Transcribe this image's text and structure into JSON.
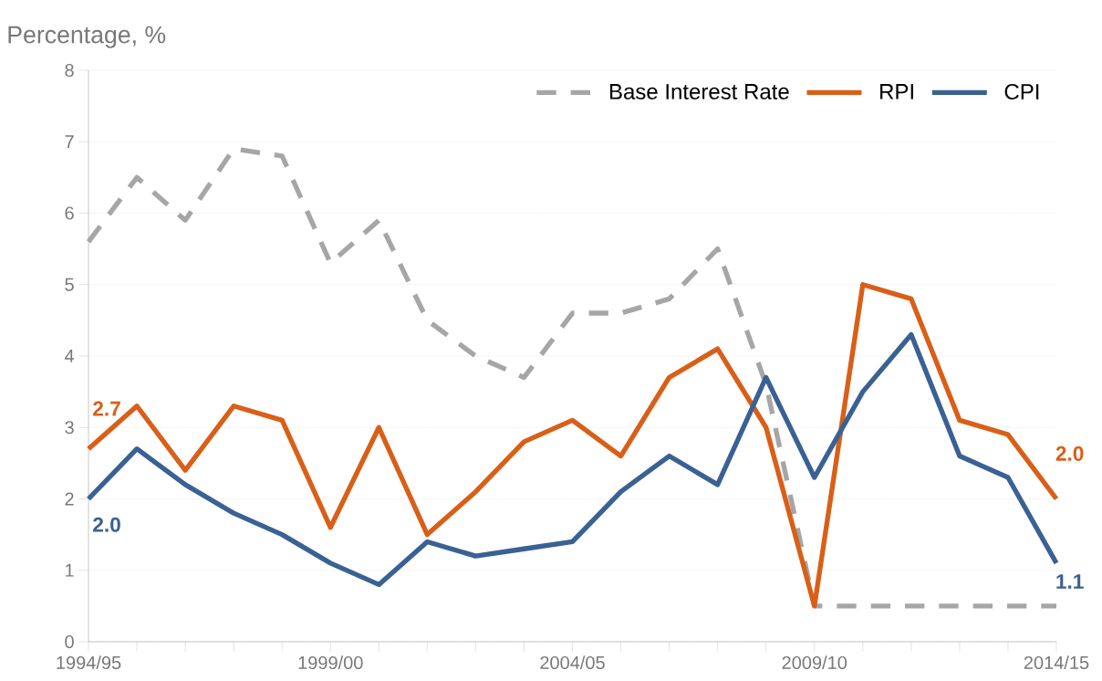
{
  "chart_data": {
    "type": "line",
    "ylabel": "Percentage, %",
    "categories": [
      "1994/95",
      null,
      null,
      null,
      null,
      "1999/00",
      null,
      null,
      null,
      null,
      "2004/05",
      null,
      null,
      null,
      null,
      "2009/10",
      null,
      null,
      null,
      null,
      "2014/15"
    ],
    "series": [
      {
        "name": "Base Interest Rate",
        "color": "#a6a6a6",
        "line_style": "dashed",
        "values": [
          5.6,
          6.5,
          5.9,
          6.9,
          6.8,
          5.3,
          5.9,
          4.5,
          4.0,
          3.7,
          4.6,
          4.6,
          4.8,
          5.5,
          3.6,
          0.5,
          0.5,
          0.5,
          0.5,
          0.5,
          0.5
        ]
      },
      {
        "name": "RPI",
        "color": "#d95f18",
        "values": [
          2.7,
          3.3,
          2.4,
          3.3,
          3.1,
          1.6,
          3.0,
          1.5,
          2.1,
          2.8,
          3.1,
          2.6,
          3.7,
          4.1,
          3.0,
          0.5,
          5.0,
          4.8,
          3.1,
          2.9,
          2.0
        ],
        "value_labels": [
          "2.7",
          null,
          null,
          null,
          null,
          null,
          null,
          null,
          null,
          null,
          null,
          null,
          null,
          null,
          null,
          null,
          null,
          null,
          null,
          null,
          "2.0"
        ]
      },
      {
        "name": "CPI",
        "color": "#3a6193",
        "values": [
          2.0,
          2.7,
          2.2,
          1.8,
          1.5,
          1.1,
          0.8,
          1.4,
          1.2,
          1.3,
          1.4,
          2.1,
          2.6,
          2.2,
          3.7,
          2.3,
          3.5,
          4.3,
          2.6,
          2.3,
          1.1
        ],
        "value_labels": [
          "2.0",
          null,
          null,
          null,
          null,
          null,
          null,
          null,
          null,
          null,
          null,
          null,
          null,
          null,
          null,
          null,
          null,
          null,
          null,
          null,
          "1.1"
        ]
      }
    ],
    "ylim": [
      0,
      8
    ],
    "yticks": [
      0,
      1,
      2,
      3,
      4,
      5,
      6,
      7,
      8
    ],
    "grid": "y",
    "legend": "top right"
  }
}
